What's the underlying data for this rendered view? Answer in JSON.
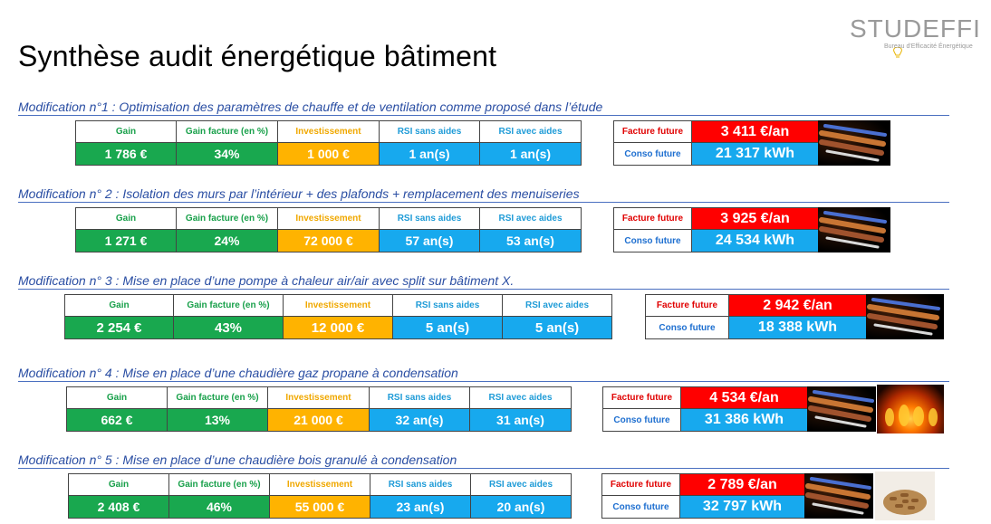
{
  "header": {
    "title": "Synthèse audit énergétique bâtiment",
    "logo_text": "STUDEFFI",
    "logo_subtitle": "Bureau d'Efficacité Énergétique"
  },
  "columns": {
    "gain": "Gain",
    "gain_facture_a": "Gain facture (en %)",
    "gain_facture_b": "Gain facture (en %)",
    "investissement": "Investissement",
    "rsi_sans": "RSI sans aides",
    "rsi_avec": "RSI avec aides",
    "facture_future": "Facture future",
    "conso_future": "Conso future"
  },
  "modifications": [
    {
      "title": "Modification n°1 : Optimisation des paramètres de chauffe et de ventilation comme proposé dans l’étude",
      "gain": "1 786 €",
      "gain_pct": "34%",
      "investissement": "1 000 €",
      "rsi_sans": "1 an(s)",
      "rsi_avec": "1 an(s)",
      "facture": "3 411 €/an",
      "conso": "21 317 kWh",
      "images": [
        "copper-pipes"
      ]
    },
    {
      "title": "Modification n° 2 : Isolation des murs par l’intérieur + des plafonds + remplacement des menuiseries",
      "gain": "1 271 €",
      "gain_pct": "24%",
      "investissement": "72 000 €",
      "rsi_sans": "57 an(s)",
      "rsi_avec": "53 an(s)",
      "facture": "3 925 €/an",
      "conso": "24 534 kWh",
      "images": [
        "copper-pipes"
      ]
    },
    {
      "title": "Modification n° 3 : Mise en place d’une pompe à chaleur air/air avec split sur bâtiment X.",
      "gain": "2 254 €",
      "gain_pct": "43%",
      "investissement": "12 000 €",
      "rsi_sans": "5 an(s)",
      "rsi_avec": "5 an(s)",
      "facture": "2 942 €/an",
      "conso": "18 388 kWh",
      "images": [
        "copper-pipes"
      ]
    },
    {
      "title": "Modification n° 4 : Mise en place d’une chaudière gaz propane à condensation",
      "gain": "662 €",
      "gain_pct": "13%",
      "investissement": "21 000 €",
      "rsi_sans": "32 an(s)",
      "rsi_avec": "31 an(s)",
      "facture": "4 534 €/an",
      "conso": "31 386 kWh",
      "images": [
        "copper-pipes",
        "gas-flame"
      ]
    },
    {
      "title": "Modification n° 5 : Mise en place d’une chaudière bois granulé à condensation",
      "gain": "2 408 €",
      "gain_pct": "46%",
      "investissement": "55 000 €",
      "rsi_sans": "23 an(s)",
      "rsi_avec": "20 an(s)",
      "facture": "2 789 €/an",
      "conso": "32 797 kWh",
      "images": [
        "copper-pipes",
        "wood-pellets"
      ]
    }
  ],
  "colors": {
    "green": "#19a84f",
    "yellow": "#ffb300",
    "blue": "#17a9ee",
    "red": "#ff0000",
    "title_blue": "#2a4ea3"
  }
}
